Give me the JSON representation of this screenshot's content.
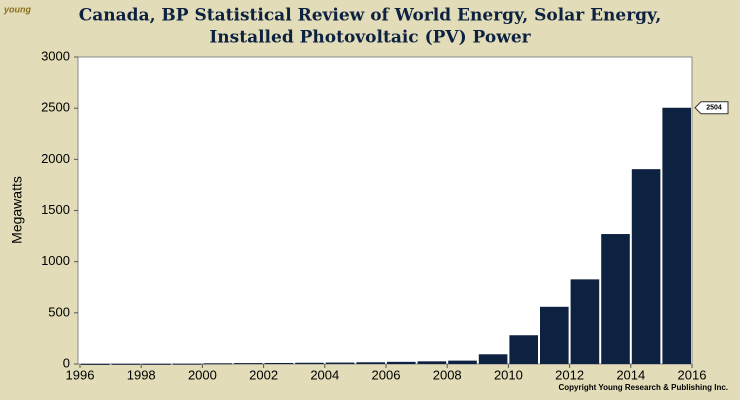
{
  "chart_data": {
    "type": "bar",
    "title": [
      "Canada, BP Statistical Review of World Energy, Solar Energy,",
      "Installed Photovoltaic (PV) Power"
    ],
    "y_label": "Megawatts",
    "credit": "Copyright Young Research & Publishing Inc.",
    "logo": "young",
    "x": [
      1996,
      1997,
      1998,
      1999,
      2000,
      2001,
      2002,
      2003,
      2004,
      2005,
      2006,
      2007,
      2008,
      2009,
      2010,
      2011,
      2012,
      2013,
      2014,
      2015
    ],
    "values": [
      1,
      2,
      2,
      3,
      7,
      9,
      10,
      12,
      14,
      17,
      21,
      26,
      33,
      95,
      281,
      559,
      827,
      1270,
      1904,
      2504
    ],
    "value_labels": [
      null,
      null,
      null,
      null,
      null,
      null,
      null,
      null,
      null,
      null,
      null,
      null,
      null,
      null,
      null,
      null,
      null,
      null,
      null,
      "2504"
    ],
    "color": "#0d2140",
    "xlim": [
      1996,
      2016
    ],
    "xticks": [
      1996,
      1998,
      2000,
      2002,
      2004,
      2006,
      2008,
      2010,
      2012,
      2014,
      2016
    ],
    "ylim": [
      0,
      3000
    ],
    "yticks": [
      0,
      500,
      1000,
      1500,
      2000,
      2500,
      3000
    ]
  }
}
